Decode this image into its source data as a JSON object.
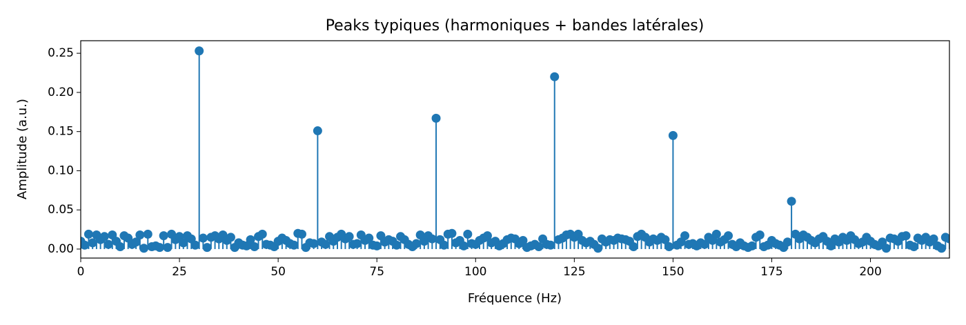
{
  "chart_data": {
    "type": "stem",
    "title": "Peaks typiques (harmoniques + bandes latérales)",
    "xlabel": "Fréquence (Hz)",
    "ylabel": "Amplitude (a.u.)",
    "color": "#1f77b4",
    "xlim": [
      0,
      220
    ],
    "ylim": [
      -0.0115,
      0.266
    ],
    "xticks": [
      0,
      25,
      50,
      75,
      100,
      125,
      150,
      175,
      200
    ],
    "yticks": [
      {
        "value": 0,
        "label": "0.00"
      },
      {
        "value": 0.05,
        "label": "0.05"
      },
      {
        "value": 0.1,
        "label": "0.10"
      },
      {
        "value": 0.15,
        "label": "0.15"
      },
      {
        "value": 0.2,
        "label": "0.20"
      },
      {
        "value": 0.25,
        "label": "0.25"
      }
    ],
    "x": [
      0,
      1,
      2,
      3,
      4,
      5,
      6,
      7,
      8,
      9,
      10,
      11,
      12,
      13,
      14,
      15,
      16,
      17,
      18,
      19,
      20,
      21,
      22,
      23,
      24,
      25,
      26,
      27,
      28,
      29,
      30,
      31,
      32,
      33,
      34,
      35,
      36,
      37,
      38,
      39,
      40,
      41,
      42,
      43,
      44,
      45,
      46,
      47,
      48,
      49,
      50,
      51,
      52,
      53,
      54,
      55,
      56,
      57,
      58,
      59,
      60,
      61,
      62,
      63,
      64,
      65,
      66,
      67,
      68,
      69,
      70,
      71,
      72,
      73,
      74,
      75,
      76,
      77,
      78,
      79,
      80,
      81,
      82,
      83,
      84,
      85,
      86,
      87,
      88,
      89,
      90,
      91,
      92,
      93,
      94,
      95,
      96,
      97,
      98,
      99,
      100,
      101,
      102,
      103,
      104,
      105,
      106,
      107,
      108,
      109,
      110,
      111,
      112,
      113,
      114,
      115,
      116,
      117,
      118,
      119,
      120,
      121,
      122,
      123,
      124,
      125,
      126,
      127,
      128,
      129,
      130,
      131,
      132,
      133,
      134,
      135,
      136,
      137,
      138,
      139,
      140,
      141,
      142,
      143,
      144,
      145,
      146,
      147,
      148,
      149,
      150,
      151,
      152,
      153,
      154,
      155,
      156,
      157,
      158,
      159,
      160,
      161,
      162,
      163,
      164,
      165,
      166,
      167,
      168,
      169,
      170,
      171,
      172,
      173,
      174,
      175,
      176,
      177,
      178,
      179,
      180,
      181,
      182,
      183,
      184,
      185,
      186,
      187,
      188,
      189,
      190,
      191,
      192,
      193,
      194,
      195,
      196,
      197,
      198,
      199,
      200,
      201,
      202,
      203,
      204,
      205,
      206,
      207,
      208,
      209,
      210,
      211,
      212,
      213,
      214,
      215,
      216,
      217,
      218,
      219,
      220
    ],
    "values": [
      0.01,
      0.005,
      0.019,
      0.008,
      0.018,
      0.012,
      0.016,
      0.006,
      0.018,
      0.01,
      0.003,
      0.017,
      0.014,
      0.006,
      0.009,
      0.018,
      0.001,
      0.019,
      0.003,
      0.004,
      0.002,
      0.017,
      0.002,
      0.019,
      0.012,
      0.016,
      0.008,
      0.017,
      0.013,
      0.005,
      0.253,
      0.014,
      0.002,
      0.015,
      0.017,
      0.013,
      0.018,
      0.011,
      0.015,
      0.002,
      0.008,
      0.005,
      0.004,
      0.012,
      0.003,
      0.016,
      0.019,
      0.006,
      0.005,
      0.003,
      0.01,
      0.014,
      0.011,
      0.007,
      0.005,
      0.02,
      0.019,
      0.002,
      0.008,
      0.007,
      0.151,
      0.009,
      0.006,
      0.016,
      0.01,
      0.015,
      0.019,
      0.013,
      0.016,
      0.006,
      0.007,
      0.018,
      0.011,
      0.014,
      0.005,
      0.004,
      0.017,
      0.009,
      0.012,
      0.01,
      0.005,
      0.016,
      0.012,
      0.006,
      0.003,
      0.007,
      0.018,
      0.01,
      0.017,
      0.013,
      0.167,
      0.012,
      0.005,
      0.019,
      0.02,
      0.008,
      0.011,
      0.004,
      0.019,
      0.007,
      0.006,
      0.011,
      0.014,
      0.017,
      0.008,
      0.01,
      0.004,
      0.007,
      0.012,
      0.014,
      0.013,
      0.007,
      0.011,
      0.002,
      0.004,
      0.006,
      0.003,
      0.013,
      0.006,
      0.005,
      0.22,
      0.012,
      0.014,
      0.018,
      0.019,
      0.015,
      0.019,
      0.011,
      0.008,
      0.01,
      0.006,
      0.001,
      0.013,
      0.009,
      0.012,
      0.011,
      0.014,
      0.013,
      0.012,
      0.01,
      0.003,
      0.016,
      0.019,
      0.015,
      0.009,
      0.013,
      0.011,
      0.015,
      0.012,
      0.003,
      0.145,
      0.005,
      0.009,
      0.017,
      0.006,
      0.007,
      0.004,
      0.008,
      0.006,
      0.015,
      0.011,
      0.019,
      0.009,
      0.012,
      0.017,
      0.006,
      0.003,
      0.008,
      0.004,
      0.002,
      0.004,
      0.015,
      0.018,
      0.003,
      0.005,
      0.011,
      0.007,
      0.005,
      0.002,
      0.009,
      0.061,
      0.019,
      0.013,
      0.018,
      0.015,
      0.011,
      0.008,
      0.013,
      0.016,
      0.01,
      0.004,
      0.013,
      0.009,
      0.015,
      0.011,
      0.017,
      0.012,
      0.007,
      0.009,
      0.015,
      0.01,
      0.006,
      0.004,
      0.009,
      0.001,
      0.014,
      0.013,
      0.01,
      0.016,
      0.017,
      0.005,
      0.003,
      0.014,
      0.011,
      0.015,
      0.009,
      0.013,
      0.004,
      0.001,
      0.015,
      0.013
    ]
  }
}
